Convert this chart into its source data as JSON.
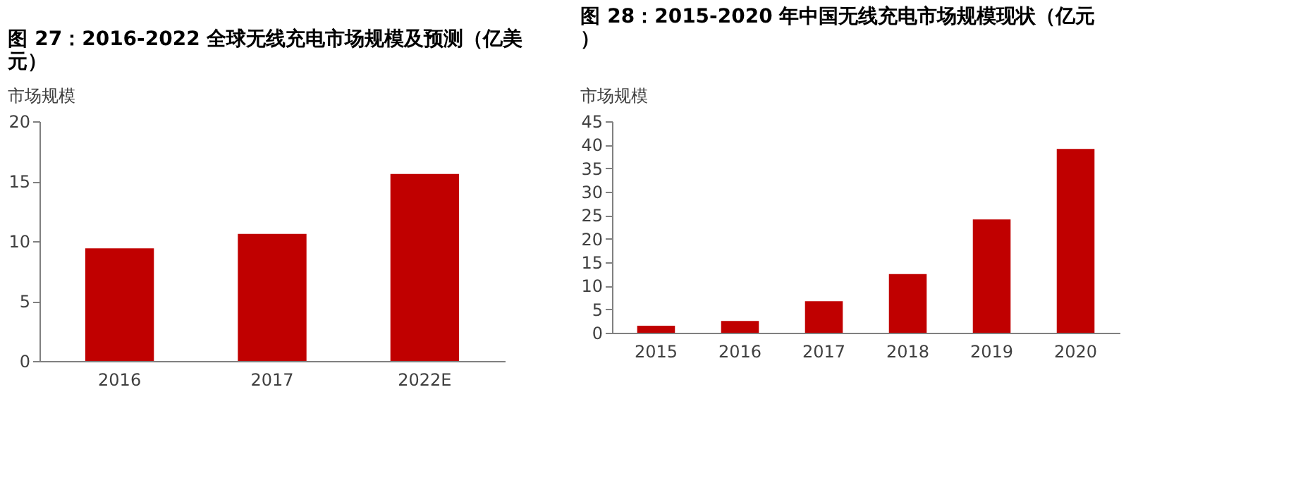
{
  "chart_data": [
    {
      "type": "bar",
      "title": "图 27：2016-2022 全球无线充电市场规模及预测（亿美元）",
      "subtitle": "市场规模",
      "categories": [
        "2016",
        "2017",
        "2022E"
      ],
      "values": [
        9.4,
        10.6,
        15.6
      ],
      "color": "#c00000",
      "ylim": [
        0,
        20
      ],
      "yticks": [
        0,
        5,
        10,
        15,
        20
      ],
      "grid": false
    },
    {
      "type": "bar",
      "title": "图 28：2015-2020 年中国无线充电市场规模现状（亿元）",
      "subtitle": "市场规模",
      "categories": [
        "2015",
        "2016",
        "2017",
        "2018",
        "2019",
        "2020"
      ],
      "values": [
        1.5,
        2.5,
        6.7,
        12.5,
        24.1,
        39.1
      ],
      "color": "#c00000",
      "ylim": [
        0,
        45
      ],
      "yticks": [
        0,
        5,
        10,
        15,
        20,
        25,
        30,
        35,
        40,
        45
      ],
      "grid": false
    }
  ]
}
